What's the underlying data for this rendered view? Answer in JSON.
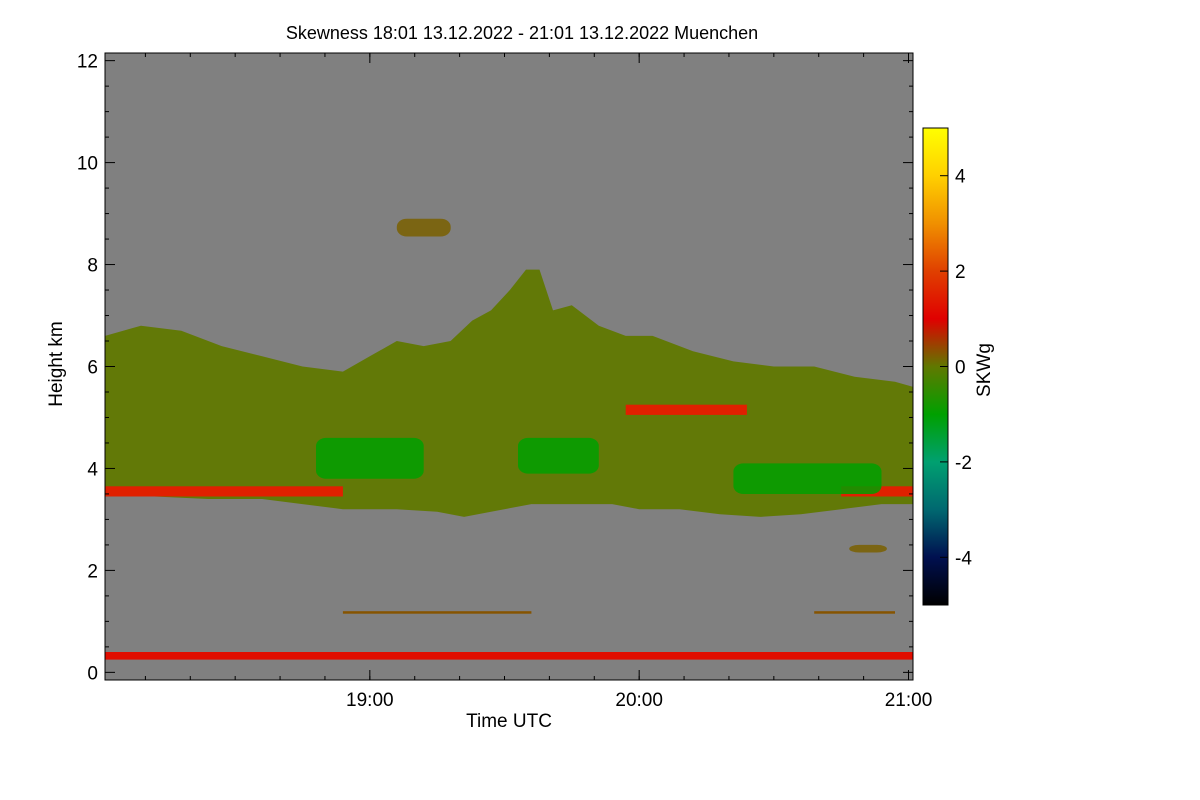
{
  "chart_data": {
    "type": "heatmap",
    "title": "Skewness   18:01 13.12.2022 - 21:01 13.12.2022 Muenchen",
    "xlabel": "Time UTC",
    "ylabel": "Height km",
    "xlim": [
      18.0167,
      21.0167
    ],
    "ylim": [
      -0.15,
      12.15
    ],
    "x_ticks": [
      {
        "value": 19.0,
        "label": "19:00"
      },
      {
        "value": 20.0,
        "label": "20:00"
      },
      {
        "value": 21.0,
        "label": "21:00"
      }
    ],
    "y_ticks": [
      {
        "value": 0,
        "label": "0"
      },
      {
        "value": 2,
        "label": "2"
      },
      {
        "value": 4,
        "label": "4"
      },
      {
        "value": 6,
        "label": "6"
      },
      {
        "value": 8,
        "label": "8"
      },
      {
        "value": 10,
        "label": "10"
      },
      {
        "value": 12,
        "label": "12"
      }
    ],
    "colorbar": {
      "label": "SKWg",
      "range": [
        -5,
        5
      ],
      "ticks": [
        {
          "value": 4,
          "label": "4"
        },
        {
          "value": 2,
          "label": "2"
        },
        {
          "value": 0,
          "label": "0"
        },
        {
          "value": -2,
          "label": "-2"
        },
        {
          "value": -4,
          "label": "-4"
        }
      ],
      "stops": [
        {
          "value": -5,
          "color": "#000000"
        },
        {
          "value": -4,
          "color": "#001050"
        },
        {
          "value": -3,
          "color": "#006870"
        },
        {
          "value": -2,
          "color": "#00a070"
        },
        {
          "value": -1,
          "color": "#00a000"
        },
        {
          "value": 0,
          "color": "#607800"
        },
        {
          "value": 1,
          "color": "#e00000"
        },
        {
          "value": 2,
          "color": "#e04000"
        },
        {
          "value": 3,
          "color": "#f09000"
        },
        {
          "value": 4,
          "color": "#ffd000"
        },
        {
          "value": 5,
          "color": "#ffff00"
        }
      ]
    },
    "background_color": "#808080",
    "cloud_layer": {
      "mean_skewness": 0,
      "top_km": [
        [
          18.017,
          6.6
        ],
        [
          18.15,
          6.8
        ],
        [
          18.3,
          6.7
        ],
        [
          18.45,
          6.4
        ],
        [
          18.6,
          6.2
        ],
        [
          18.75,
          6.0
        ],
        [
          18.9,
          5.9
        ],
        [
          19.0,
          6.2
        ],
        [
          19.1,
          6.5
        ],
        [
          19.2,
          6.4
        ],
        [
          19.3,
          6.5
        ],
        [
          19.38,
          6.9
        ],
        [
          19.45,
          7.1
        ],
        [
          19.52,
          7.5
        ],
        [
          19.58,
          7.9
        ],
        [
          19.63,
          7.9
        ],
        [
          19.68,
          7.1
        ],
        [
          19.75,
          7.2
        ],
        [
          19.85,
          6.8
        ],
        [
          19.95,
          6.6
        ],
        [
          20.05,
          6.6
        ],
        [
          20.2,
          6.3
        ],
        [
          20.35,
          6.1
        ],
        [
          20.5,
          6.0
        ],
        [
          20.65,
          6.0
        ],
        [
          20.8,
          5.8
        ],
        [
          20.95,
          5.7
        ],
        [
          21.017,
          5.6
        ]
      ],
      "base_km": [
        [
          18.017,
          3.5
        ],
        [
          18.2,
          3.45
        ],
        [
          18.4,
          3.4
        ],
        [
          18.6,
          3.4
        ],
        [
          18.75,
          3.3
        ],
        [
          18.9,
          3.2
        ],
        [
          19.1,
          3.2
        ],
        [
          19.25,
          3.15
        ],
        [
          19.35,
          3.05
        ],
        [
          19.45,
          3.15
        ],
        [
          19.6,
          3.3
        ],
        [
          19.75,
          3.3
        ],
        [
          19.9,
          3.3
        ],
        [
          20.0,
          3.2
        ],
        [
          20.15,
          3.2
        ],
        [
          20.3,
          3.1
        ],
        [
          20.45,
          3.05
        ],
        [
          20.6,
          3.1
        ],
        [
          20.75,
          3.2
        ],
        [
          20.9,
          3.3
        ],
        [
          21.017,
          3.3
        ]
      ]
    },
    "features": [
      {
        "name": "positive-skewness-band",
        "skewness": 1.5,
        "x": [
          18.017,
          18.9
        ],
        "y": [
          3.45,
          3.65
        ]
      },
      {
        "name": "positive-skewness-band",
        "skewness": 1.5,
        "x": [
          19.95,
          20.4
        ],
        "y": [
          5.05,
          5.25
        ]
      },
      {
        "name": "positive-skewness-band",
        "skewness": 1.5,
        "x": [
          20.75,
          21.017
        ],
        "y": [
          3.45,
          3.65
        ]
      },
      {
        "name": "negative-skewness-patch",
        "skewness": -1,
        "x": [
          18.8,
          19.2
        ],
        "y": [
          3.8,
          4.6
        ]
      },
      {
        "name": "negative-skewness-patch",
        "skewness": -1,
        "x": [
          19.55,
          19.85
        ],
        "y": [
          3.9,
          4.6
        ]
      },
      {
        "name": "negative-skewness-patch",
        "skewness": -1,
        "x": [
          20.35,
          20.9
        ],
        "y": [
          3.5,
          4.1
        ]
      },
      {
        "name": "isolated-cloud-patch",
        "skewness": 0.2,
        "x": [
          19.1,
          19.3
        ],
        "y": [
          8.55,
          8.9
        ]
      },
      {
        "name": "isolated-cloud-patch",
        "skewness": 0.2,
        "x": [
          20.78,
          20.92
        ],
        "y": [
          2.35,
          2.5
        ]
      },
      {
        "name": "thin-aerosol-layer",
        "skewness": 0.3,
        "x": [
          18.9,
          19.6
        ],
        "y": [
          1.15,
          1.2
        ]
      },
      {
        "name": "thin-aerosol-layer",
        "skewness": 0.3,
        "x": [
          20.65,
          20.95
        ],
        "y": [
          1.15,
          1.2
        ]
      },
      {
        "name": "surface-layer",
        "skewness": 1.2,
        "x": [
          18.017,
          21.017
        ],
        "y": [
          0.25,
          0.4
        ]
      }
    ]
  }
}
